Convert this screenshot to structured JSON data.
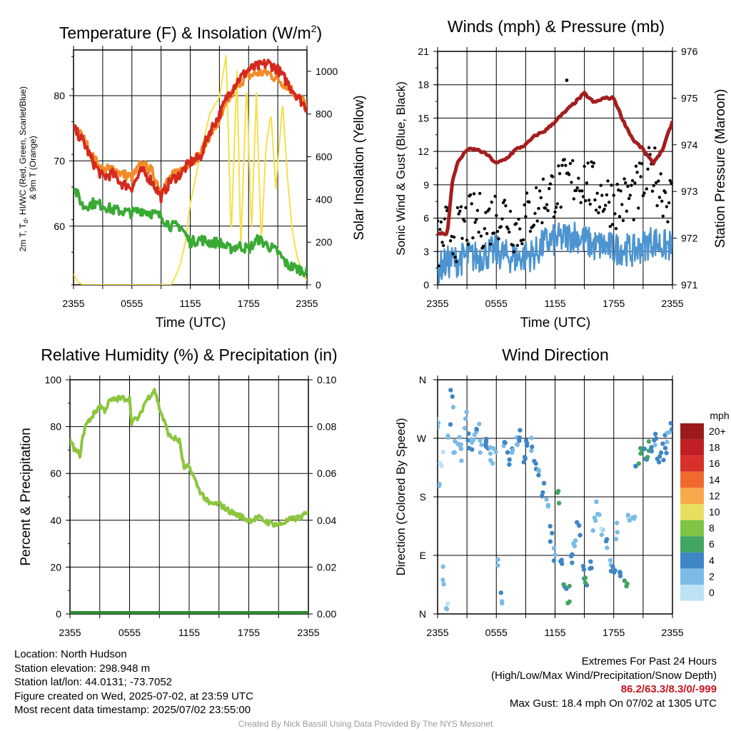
{
  "chart_data": [
    {
      "type": "line",
      "title": "Temperature (F) & Insolation (W/m²)",
      "xlabel": "Time (UTC)",
      "ylabel": "2m T, Td, HI/WC (Red, Green, Scarlet/Blue) & 9m T (Orange)",
      "ylabel_right": "Solar Insolation (Yellow)",
      "x_ticks": [
        "2355",
        "0555",
        "1155",
        "1755",
        "2355"
      ],
      "ylim": [
        51,
        87
      ],
      "y_ticks": [
        60,
        70,
        80
      ],
      "ylim_right": [
        0,
        1100
      ],
      "y_ticks_right": [
        0,
        200,
        400,
        600,
        800,
        1000
      ],
      "grid": true,
      "x_hours": [
        0,
        1,
        2,
        3,
        4,
        5,
        6,
        7,
        8,
        9,
        10,
        11,
        12,
        13,
        14,
        15,
        16,
        17,
        18,
        19,
        20,
        21,
        22,
        23,
        24
      ],
      "series": [
        {
          "color": "#f28c28",
          "values": [
            75.2,
            73.5,
            70.5,
            68.5,
            68.8,
            68.0,
            67.5,
            69.5,
            68.5,
            65.5,
            67.5,
            68.5,
            70.0,
            70.8,
            74.0,
            76.0,
            79.5,
            82.0,
            83.0,
            83.5,
            83.5,
            82.5,
            81.5,
            80.0,
            78.5
          ]
        },
        {
          "color": "#d42a1e",
          "values": [
            75.0,
            73.0,
            69.8,
            67.5,
            68.0,
            66.5,
            66.0,
            68.5,
            67.0,
            64.5,
            67.0,
            68.0,
            69.8,
            70.5,
            74.5,
            77.0,
            80.5,
            82.5,
            84.0,
            84.5,
            85.0,
            84.0,
            82.0,
            80.0,
            78.0
          ]
        },
        {
          "color": "#3aaa35",
          "values": [
            66.0,
            63.0,
            63.5,
            63.2,
            62.5,
            62.3,
            62.0,
            62.5,
            62.0,
            61.5,
            60.0,
            60.0,
            57.5,
            58.0,
            57.5,
            57.5,
            56.5,
            57.0,
            56.5,
            58.0,
            57.0,
            56.0,
            54.0,
            53.5,
            53.0
          ]
        }
      ],
      "insolation": {
        "color": "#f5e04a",
        "x_hours": [
          0,
          0.5,
          1,
          2,
          4,
          6,
          7,
          8,
          9,
          10,
          10.5,
          11,
          11.5,
          12,
          13,
          14,
          15,
          15.7,
          16.2,
          16.8,
          17.2,
          17.8,
          18.3,
          18.8,
          19.3,
          19.8,
          20.3,
          20.8,
          21.5,
          22,
          22.5,
          23,
          23.5,
          24
        ],
        "values": [
          50,
          10,
          0,
          0,
          0,
          0,
          0,
          0,
          0,
          0,
          40,
          100,
          200,
          380,
          600,
          800,
          880,
          1080,
          220,
          1000,
          180,
          950,
          250,
          900,
          200,
          650,
          800,
          450,
          850,
          500,
          250,
          130,
          60,
          20
        ]
      }
    },
    {
      "type": "line",
      "title": "Winds (mph) & Pressure (mb)",
      "xlabel": "Time (UTC)",
      "ylabel": "Sonic Wind & Gust (Blue, Black)",
      "ylabel_right": "Station Pressure (Maroon)",
      "x_ticks": [
        "2355",
        "0555",
        "1155",
        "1755",
        "2355"
      ],
      "ylim": [
        0,
        21
      ],
      "y_ticks": [
        0,
        3,
        6,
        9,
        12,
        15,
        18,
        21
      ],
      "ylim_right": [
        971,
        976
      ],
      "y_ticks_right": [
        971,
        972,
        973,
        974,
        975,
        976
      ],
      "grid": true,
      "pressure": {
        "color": "#a41e1e",
        "x_hours": [
          0,
          1,
          1.5,
          2,
          3,
          4,
          5,
          6,
          7,
          8,
          9,
          10,
          11,
          12,
          13,
          14,
          15,
          15.5,
          16,
          17,
          18,
          19,
          20,
          21,
          22,
          23,
          24
        ],
        "values": [
          972.1,
          972.1,
          973.2,
          973.6,
          973.9,
          973.9,
          973.8,
          973.6,
          973.7,
          973.9,
          974.0,
          974.2,
          974.3,
          974.5,
          974.7,
          974.9,
          975.1,
          975.0,
          974.9,
          975.0,
          975.0,
          974.5,
          974.1,
          973.9,
          973.6,
          973.9,
          974.5
        ]
      },
      "wind": {
        "color": "#4d94d0",
        "x_hours": [
          0,
          1,
          2,
          3,
          4,
          5,
          6,
          7,
          8,
          9,
          10,
          11,
          12,
          13,
          14,
          15,
          16,
          17,
          18,
          19,
          20,
          21,
          22,
          23,
          24
        ],
        "values": [
          1.5,
          2.0,
          2.2,
          2.5,
          2.5,
          2.8,
          3.0,
          2.6,
          2.4,
          2.6,
          2.8,
          3.8,
          4.0,
          4.2,
          4.5,
          4.0,
          3.5,
          3.5,
          3.2,
          3.3,
          3.0,
          3.5,
          4.0,
          3.5,
          3.5
        ]
      },
      "gust": {
        "color": "#000000",
        "x_hours": [
          0,
          1,
          2,
          3,
          4,
          5,
          6,
          7,
          8,
          9,
          10,
          11,
          12,
          13,
          14,
          15,
          16,
          17,
          18,
          19,
          20,
          21,
          22,
          23,
          24
        ],
        "values": [
          3.5,
          5.0,
          4.5,
          5.5,
          6.0,
          5.5,
          6.5,
          6.5,
          5.0,
          6.0,
          7.0,
          8.0,
          8.5,
          9.0,
          9.5,
          9.5,
          8.5,
          8.0,
          7.5,
          7.5,
          8.0,
          9.0,
          10.5,
          8.5,
          7.5
        ]
      },
      "max_gust": {
        "x_hour": 13.2,
        "value": 18.4
      }
    },
    {
      "type": "line",
      "title": "Relative Humidity (%) & Precipitation (in)",
      "xlabel": "",
      "ylabel": "Percent & Precipitation",
      "x_ticks": [
        "2355",
        "0555",
        "1155",
        "1755",
        "2355"
      ],
      "ylim": [
        0,
        100
      ],
      "y_ticks": [
        0,
        20,
        40,
        60,
        80,
        100
      ],
      "ylim_right": [
        0,
        0.1
      ],
      "y_ticks_right": [
        "0.00",
        "0.02",
        "0.04",
        "0.06",
        "0.08",
        "0.10"
      ],
      "grid": true,
      "series": [
        {
          "color": "#8cc63f",
          "x_hours": [
            0,
            0.5,
            1,
            1.5,
            2,
            3,
            3.5,
            4,
            5,
            6,
            6.2,
            7,
            7.5,
            8,
            8.5,
            9,
            10,
            11,
            11.5,
            12,
            13,
            14,
            15,
            16,
            17,
            18,
            19,
            20,
            21,
            22,
            23,
            24
          ],
          "values": [
            74,
            70,
            68,
            80,
            83,
            89,
            87,
            91,
            92,
            92,
            82,
            84,
            90,
            93,
            96,
            88,
            76,
            74,
            62,
            63,
            53,
            47,
            47,
            44,
            42,
            40,
            41,
            39,
            38,
            40,
            41,
            43
          ]
        },
        {
          "color": "#2e8b2e",
          "values": [
            0,
            0
          ]
        }
      ]
    },
    {
      "type": "scatter",
      "title": "Wind Direction",
      "xlabel": "",
      "ylabel": "Direction (Colored By Speed)",
      "x_ticks": [
        "2355",
        "0555",
        "1155",
        "1755",
        "2355"
      ],
      "y_ticks": [
        "N",
        "E",
        "S",
        "W",
        "N"
      ],
      "ylim": [
        0,
        360
      ],
      "grid": true,
      "colorbar": {
        "unit": "mph",
        "labels": [
          "20+",
          "18",
          "16",
          "14",
          "12",
          "10",
          "8",
          "6",
          "4",
          "2",
          "0"
        ],
        "colors": [
          "#9b1b1b",
          "#c01f25",
          "#d7302a",
          "#f06a2e",
          "#f8a94b",
          "#e9df5e",
          "#7fc447",
          "#41a660",
          "#3f86c4",
          "#7bbbe6",
          "#bde3f5"
        ]
      },
      "x_hours": [
        0.1,
        0.3,
        0.4,
        0.6,
        0.9,
        1.2,
        1.5,
        1.8,
        2.1,
        2.5,
        2.8,
        3.1,
        3.4,
        3.8,
        4.1,
        4.4,
        4.8,
        5.1,
        5.5,
        5.8,
        6.1,
        6.5,
        6.9,
        7.2,
        7.6,
        8.0,
        8.4,
        8.8,
        9.2,
        9.6,
        10.0,
        10.4,
        10.8,
        11.2,
        11.6,
        12.0,
        12.3,
        12.6,
        13.0,
        13.3,
        13.6,
        14.0,
        14.4,
        14.8,
        15.2,
        15.6,
        16.0,
        16.4,
        16.8,
        17.2,
        17.6,
        18.0,
        18.4,
        18.8,
        19.2,
        19.6,
        20.0,
        20.4,
        20.8,
        21.2,
        21.6,
        22.0,
        22.3,
        22.6,
        23.0,
        23.3,
        23.6,
        23.9
      ],
      "directions": [
        300,
        210,
        240,
        60,
        20,
        280,
        330,
        260,
        270,
        250,
        300,
        265,
        255,
        270,
        280,
        260,
        270,
        265,
        250,
        240,
        80,
        30,
        270,
        240,
        250,
        270,
        280,
        240,
        260,
        265,
        230,
        210,
        190,
        180,
        120,
        90,
        180,
        70,
        40,
        30,
        80,
        110,
        130,
        60,
        50,
        70,
        140,
        160,
        120,
        100,
        80,
        70,
        130,
        60,
        50,
        140,
        150,
        230,
        250,
        240,
        255,
        260,
        270,
        245,
        250,
        260,
        275,
        280
      ],
      "speeds": [
        1.5,
        2,
        1,
        2.5,
        1,
        3,
        2.5,
        2,
        3,
        2.5,
        2,
        3.5,
        3,
        2.5,
        3,
        2,
        3.5,
        3,
        2.5,
        2,
        2,
        3,
        3.5,
        4,
        3,
        2.5,
        4,
        3.5,
        3,
        3,
        4.5,
        3.5,
        3,
        2,
        3,
        2.5,
        6,
        3.5,
        4.5,
        6.5,
        3,
        2.5,
        4,
        3.5,
        5.5,
        4,
        1.5,
        2,
        1.5,
        3,
        3.5,
        4,
        2,
        4.5,
        6,
        1.5,
        2,
        5,
        6,
        4.5,
        5.5,
        4,
        3.5,
        4,
        3.5,
        4.5,
        2.5,
        3
      ]
    }
  ],
  "footer": {
    "location": "Location: North Hudson",
    "elevation": "Station elevation: 298.948 m",
    "latlon": "Station lat/lon: 44.0131; -73.7052",
    "created": "Figure created on Wed, 2025-07-02, at 23:59 UTC",
    "recent": "Most recent data timestamp: 2025/07/02 23:55:00",
    "extremes_title": "Extremes For Past 24 Hours",
    "extremes_legend": "(High/Low/Max Wind/Precipitation/Snow Depth)",
    "extremes_values": "86.2/63.3/8.3/0/-999",
    "max_gust": "Max Gust: 18.4 mph On 07/02 at 1305 UTC",
    "credit": "Created By Nick Bassill Using Data Provided By The NYS Mesonet"
  }
}
